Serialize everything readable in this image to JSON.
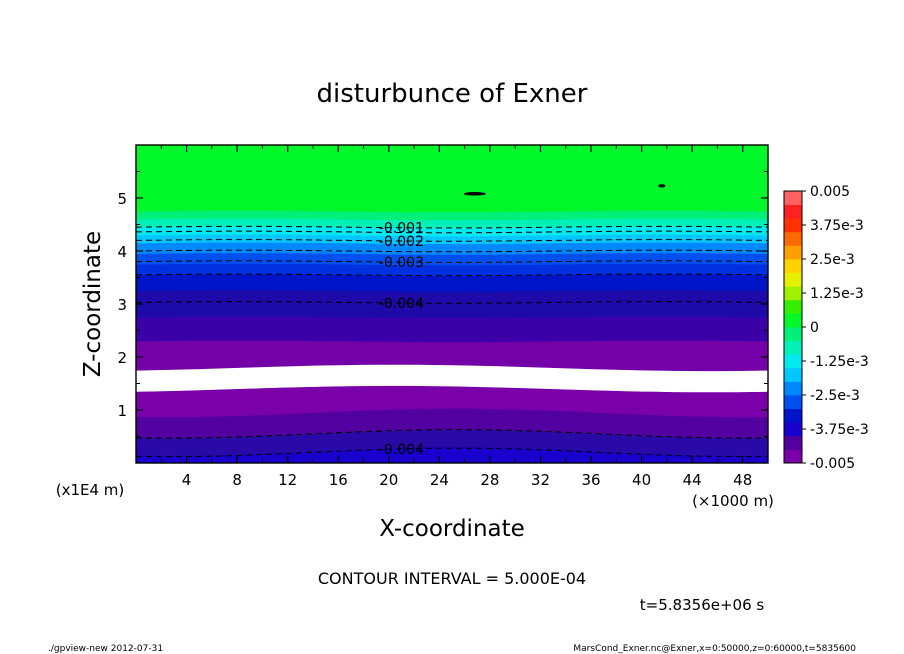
{
  "chart_data": {
    "type": "contour",
    "title": "disturbunce of Exner",
    "xlabel": "X-coordinate",
    "ylabel": "Z-coordinate",
    "x_unit_label": "(×1000 m)",
    "y_unit_label": "(x1E4 m)",
    "xlim": [
      0,
      50
    ],
    "ylim": [
      0,
      6
    ],
    "x_ticks": [
      "4",
      "8",
      "12",
      "16",
      "20",
      "24",
      "28",
      "32",
      "36",
      "40",
      "44",
      "48"
    ],
    "x_tick_values": [
      4,
      8,
      12,
      16,
      20,
      24,
      28,
      32,
      36,
      40,
      44,
      48
    ],
    "y_ticks": [
      "1",
      "2",
      "3",
      "4",
      "5"
    ],
    "y_tick_values": [
      1,
      2,
      3,
      4,
      5
    ],
    "bands": [
      {
        "z0": 0.0,
        "z1": 0.22,
        "color": "#1a00cc"
      },
      {
        "z0": 0.22,
        "z1": 0.55,
        "color": "#2a0aa6"
      },
      {
        "z0": 0.55,
        "z1": 0.95,
        "color": "#5200a0"
      },
      {
        "z0": 0.95,
        "z1": 1.4,
        "color": "#7a00aa"
      },
      {
        "z0": 1.4,
        "z1": 1.8,
        "color": "#ffffff"
      },
      {
        "z0": 1.8,
        "z1": 2.3,
        "color": "#7400a8"
      },
      {
        "z0": 2.3,
        "z1": 2.75,
        "color": "#3c00a8"
      },
      {
        "z0": 2.75,
        "z1": 3.25,
        "color": "#1e0aa8"
      },
      {
        "z0": 3.25,
        "z1": 3.55,
        "color": "#0014c8"
      },
      {
        "z0": 3.55,
        "z1": 3.75,
        "color": "#0030e0"
      },
      {
        "z0": 3.75,
        "z1": 3.95,
        "color": "#0050f0"
      },
      {
        "z0": 3.95,
        "z1": 4.15,
        "color": "#0088ff"
      },
      {
        "z0": 4.15,
        "z1": 4.3,
        "color": "#00c8ff"
      },
      {
        "z0": 4.3,
        "z1": 4.45,
        "color": "#00eaf0"
      },
      {
        "z0": 4.45,
        "z1": 4.6,
        "color": "#00f0b8"
      },
      {
        "z0": 4.6,
        "z1": 4.75,
        "color": "#00f07a"
      },
      {
        "z0": 4.75,
        "z1": 6.0,
        "color": "#00f82a"
      }
    ],
    "contours": [
      {
        "z": 0.2,
        "label": "-0.004",
        "label_x": 21
      },
      {
        "z": 0.55,
        "label": ""
      },
      {
        "z": 3.03,
        "label": "-0.004",
        "label_x": 21
      },
      {
        "z": 3.55,
        "label": ""
      },
      {
        "z": 3.8,
        "label": "-0.003",
        "label_x": 21
      },
      {
        "z": 4.0,
        "label": ""
      },
      {
        "z": 4.2,
        "label": "-0.002",
        "label_x": 21
      },
      {
        "z": 4.36,
        "label": ""
      },
      {
        "z": 4.45,
        "label": "-0.001",
        "label_x": 21
      }
    ],
    "colorbar": {
      "labels": [
        "0.005",
        "3.75e-3",
        "2.5e-3",
        "1.25e-3",
        "0",
        "-1.25e-3",
        "-2.5e-3",
        "-3.75e-3",
        "-0.005"
      ],
      "values": [
        0.005,
        0.00375,
        0.0025,
        0.00125,
        0,
        -0.00125,
        -0.0025,
        -0.00375,
        -0.005
      ],
      "min": -0.005,
      "max": 0.005,
      "colors": [
        "#7a00aa",
        "#5200a0",
        "#1a00cc",
        "#0014c8",
        "#0050f0",
        "#0088ff",
        "#00c8ff",
        "#00eaf0",
        "#00f0b8",
        "#00f07a",
        "#00f82a",
        "#32f000",
        "#a0f000",
        "#e6f000",
        "#ffd200",
        "#ffa000",
        "#ff6a00",
        "#ff3200",
        "#ff2020",
        "#ff6060"
      ]
    },
    "contour_interval_text": "CONTOUR INTERVAL = 5.000E-04",
    "time_text": "t=5.8356e+06 s"
  },
  "footer": {
    "left": "./gpview-new  2012-07-31",
    "right": "MarsCond_Exner.nc@Exner,x=0:50000,z=0:60000,t=5835600"
  }
}
